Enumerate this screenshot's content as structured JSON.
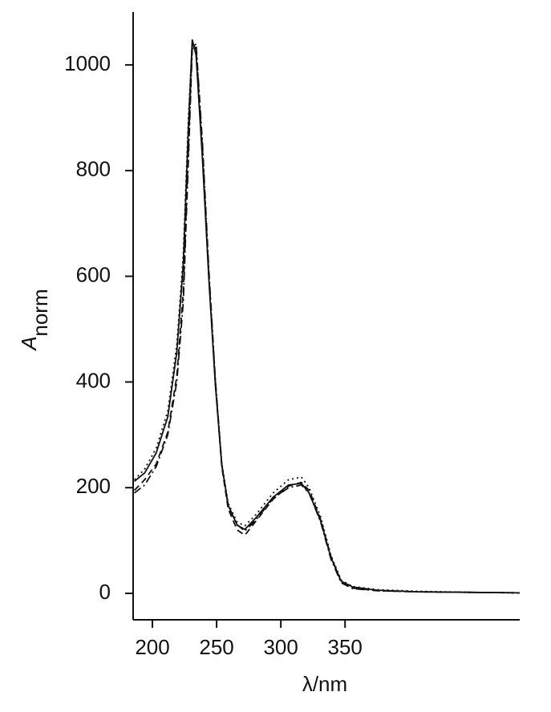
{
  "chart_data": {
    "type": "line",
    "x_label": "λ/nm",
    "y_label": "A",
    "y_label_sub": "norm",
    "x": [
      186,
      194,
      203,
      212,
      219,
      224,
      228,
      231,
      234,
      239,
      244,
      249,
      254,
      259,
      266,
      272,
      281,
      294,
      306,
      316,
      322,
      331,
      339,
      347,
      356,
      375,
      406,
      444,
      486
    ],
    "series": [
      {
        "color": "#111111",
        "dash": "solid",
        "values": [
          212,
          228,
          266,
          334,
          456,
          623,
          881,
          1048,
          1018,
          820,
          592,
          395,
          243,
          167,
          129,
          121,
          144,
          182,
          205,
          208,
          190,
          137,
          68,
          23,
          12,
          6,
          3,
          2,
          1
        ]
      },
      {
        "color": "#111111",
        "dash": "dashed",
        "values": [
          195,
          215,
          245,
          305,
          410,
          570,
          840,
          1040,
          1030,
          840,
          600,
          400,
          240,
          160,
          120,
          110,
          138,
          178,
          203,
          210,
          195,
          140,
          70,
          22,
          10,
          5,
          3,
          2,
          1
        ]
      },
      {
        "color": "#111111",
        "dash": "dotted",
        "values": [
          215,
          235,
          275,
          345,
          470,
          640,
          900,
          1040,
          1035,
          830,
          595,
          398,
          246,
          170,
          135,
          128,
          150,
          190,
          215,
          220,
          200,
          145,
          72,
          25,
          13,
          7,
          4,
          2,
          1
        ]
      },
      {
        "color": "#111111",
        "dash": "dashdot",
        "values": [
          190,
          205,
          240,
          300,
          400,
          550,
          820,
          1030,
          1040,
          850,
          610,
          405,
          245,
          165,
          130,
          118,
          140,
          180,
          200,
          205,
          190,
          135,
          65,
          20,
          9,
          5,
          3,
          2,
          1
        ]
      }
    ],
    "xlim": [
      185,
      486
    ],
    "ylim": [
      -50,
      1100
    ],
    "xticks": [
      200,
      250,
      300,
      350
    ],
    "yticks": [
      0,
      200,
      400,
      600,
      800,
      1000
    ],
    "grid": false
  }
}
